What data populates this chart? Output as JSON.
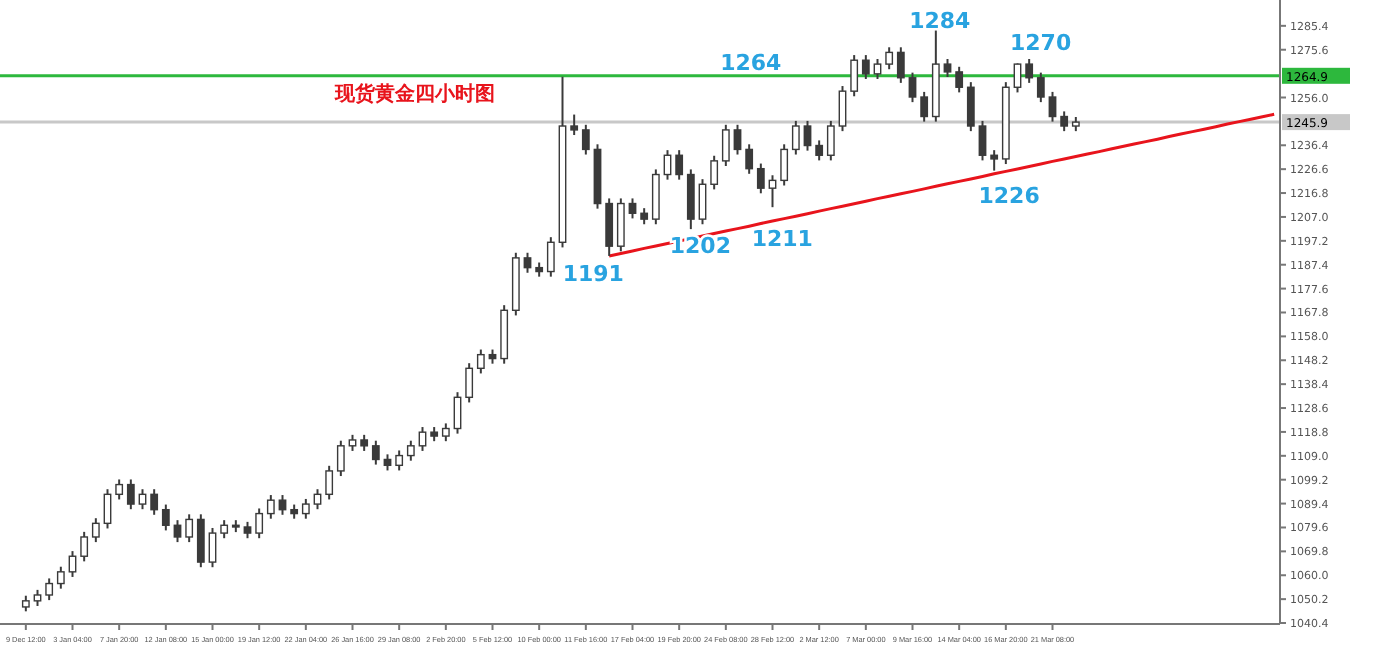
{
  "chart_data": {
    "type": "candlestick",
    "title": "现货黄金四小时图",
    "color": "#3a3a3a",
    "categories": [
      "9 Dec 12:00",
      null,
      null,
      null,
      "3 Jan 04:00",
      null,
      null,
      null,
      "7 Jan 20:00",
      null,
      null,
      null,
      "12 Jan 08:00",
      null,
      null,
      null,
      "15 Jan 00:00",
      null,
      null,
      null,
      "19 Jan 12:00",
      null,
      null,
      null,
      "22 Jan 04:00",
      null,
      null,
      null,
      "26 Jan 16:00",
      null,
      null,
      null,
      "29 Jan 08:00",
      null,
      null,
      null,
      "2 Feb 20:00",
      null,
      null,
      null,
      "5 Feb 12:00",
      null,
      null,
      null,
      "10 Feb 00:00",
      null,
      null,
      null,
      "11 Feb 16:00",
      null,
      null,
      null,
      "17 Feb 04:00",
      null,
      null,
      null,
      "19 Feb 20:00",
      null,
      null,
      null,
      "24 Feb 08:00",
      null,
      null,
      null,
      "28 Feb 12:00",
      null,
      null,
      null,
      "2 Mar 12:00",
      null,
      null,
      null,
      "7 Mar 00:00",
      null,
      null,
      null,
      "9 Mar 16:00",
      null,
      null,
      null,
      "14 Mar 04:00",
      null,
      null,
      null,
      "16 Mar 20:00",
      null,
      null,
      null,
      "21 Mar 08:00",
      null,
      null,
      null,
      null,
      null,
      null,
      null,
      null,
      null,
      null,
      null,
      null,
      null,
      null,
      null,
      null,
      null,
      null,
      null
    ],
    "ohlc": [
      [
        1047.0,
        1051.6,
        1045.2,
        1049.5
      ],
      [
        1049.5,
        1054.0,
        1047.4,
        1051.9
      ],
      [
        1051.9,
        1058.7,
        1049.8,
        1056.6
      ],
      [
        1056.6,
        1063.5,
        1054.5,
        1061.4
      ],
      [
        1061.4,
        1069.9,
        1059.3,
        1067.8
      ],
      [
        1067.8,
        1077.8,
        1065.7,
        1075.7
      ],
      [
        1075.7,
        1083.4,
        1073.6,
        1081.3
      ],
      [
        1081.3,
        1095.3,
        1079.2,
        1093.2
      ],
      [
        1093.2,
        1099.3,
        1091.1,
        1097.2
      ],
      [
        1097.2,
        1099.3,
        1087.1,
        1089.2
      ],
      [
        1089.2,
        1095.3,
        1087.1,
        1093.2
      ],
      [
        1093.2,
        1095.3,
        1084.8,
        1086.9
      ],
      [
        1086.9,
        1089.0,
        1078.4,
        1080.5
      ],
      [
        1080.5,
        1082.6,
        1073.6,
        1075.7
      ],
      [
        1075.7,
        1085.0,
        1073.6,
        1082.9
      ],
      [
        1082.9,
        1085.0,
        1063.3,
        1065.4
      ],
      [
        1065.4,
        1079.4,
        1063.3,
        1077.3
      ],
      [
        1077.3,
        1082.6,
        1075.2,
        1080.5
      ],
      [
        1080.5,
        1082.6,
        1077.7,
        1079.8
      ],
      [
        1079.8,
        1081.9,
        1075.2,
        1077.3
      ],
      [
        1077.3,
        1087.4,
        1075.2,
        1085.3
      ],
      [
        1085.3,
        1092.9,
        1083.2,
        1090.8
      ],
      [
        1090.8,
        1092.9,
        1084.8,
        1086.9
      ],
      [
        1086.9,
        1089.0,
        1083.2,
        1085.3
      ],
      [
        1085.3,
        1091.3,
        1083.2,
        1089.2
      ],
      [
        1089.2,
        1095.3,
        1087.1,
        1093.2
      ],
      [
        1093.2,
        1104.9,
        1091.1,
        1102.8
      ],
      [
        1102.8,
        1115.2,
        1100.7,
        1113.1
      ],
      [
        1113.1,
        1117.6,
        1111.0,
        1115.5
      ],
      [
        1115.5,
        1117.6,
        1111.0,
        1113.1
      ],
      [
        1113.1,
        1115.2,
        1105.4,
        1107.5
      ],
      [
        1107.5,
        1109.6,
        1103.0,
        1105.1
      ],
      [
        1105.1,
        1111.2,
        1103.0,
        1109.1
      ],
      [
        1109.1,
        1115.2,
        1107.0,
        1113.1
      ],
      [
        1113.1,
        1120.8,
        1111.0,
        1118.7
      ],
      [
        1118.7,
        1120.8,
        1115.0,
        1117.1
      ],
      [
        1117.1,
        1122.3,
        1115.0,
        1120.2
      ],
      [
        1120.2,
        1135.1,
        1118.1,
        1133.0
      ],
      [
        1133.0,
        1147.0,
        1130.9,
        1144.9
      ],
      [
        1144.9,
        1152.6,
        1142.8,
        1150.5
      ],
      [
        1150.5,
        1152.6,
        1146.8,
        1148.9
      ],
      [
        1148.9,
        1170.8,
        1146.8,
        1168.7
      ],
      [
        1168.7,
        1192.3,
        1166.6,
        1190.2
      ],
      [
        1190.2,
        1192.3,
        1184.1,
        1186.2
      ],
      [
        1186.2,
        1188.3,
        1182.5,
        1184.6
      ],
      [
        1184.6,
        1198.7,
        1182.5,
        1196.6
      ],
      [
        1196.6,
        1264.5,
        1194.5,
        1244.3
      ],
      [
        1244.3,
        1249.0,
        1240.6,
        1242.7
      ],
      [
        1242.7,
        1244.8,
        1232.6,
        1234.7
      ],
      [
        1234.7,
        1236.8,
        1210.4,
        1212.5
      ],
      [
        1212.5,
        1214.6,
        1191.0,
        1195.0
      ],
      [
        1195.0,
        1214.6,
        1192.9,
        1212.5
      ],
      [
        1212.5,
        1214.6,
        1206.4,
        1208.5
      ],
      [
        1208.5,
        1210.6,
        1204.0,
        1206.1
      ],
      [
        1206.1,
        1226.5,
        1204.0,
        1224.4
      ],
      [
        1224.4,
        1234.4,
        1222.3,
        1232.3
      ],
      [
        1232.3,
        1234.4,
        1222.3,
        1224.4
      ],
      [
        1224.4,
        1226.5,
        1202.0,
        1206.1
      ],
      [
        1206.1,
        1222.5,
        1204.0,
        1220.4
      ],
      [
        1220.4,
        1232.1,
        1218.3,
        1230.0
      ],
      [
        1230.0,
        1244.8,
        1227.9,
        1242.7
      ],
      [
        1242.7,
        1244.8,
        1232.6,
        1234.7
      ],
      [
        1234.7,
        1236.8,
        1224.7,
        1226.8
      ],
      [
        1226.8,
        1228.9,
        1216.7,
        1218.8
      ],
      [
        1218.8,
        1224.1,
        1211.0,
        1222.0
      ],
      [
        1222.0,
        1236.8,
        1219.9,
        1234.7
      ],
      [
        1234.7,
        1246.4,
        1232.6,
        1244.3
      ],
      [
        1244.3,
        1246.4,
        1234.2,
        1236.3
      ],
      [
        1236.3,
        1238.4,
        1230.2,
        1232.3
      ],
      [
        1232.3,
        1246.4,
        1230.2,
        1244.3
      ],
      [
        1244.3,
        1260.7,
        1242.2,
        1258.6
      ],
      [
        1258.6,
        1273.4,
        1256.5,
        1271.3
      ],
      [
        1271.3,
        1273.4,
        1263.6,
        1265.7
      ],
      [
        1265.7,
        1271.8,
        1263.6,
        1269.7
      ],
      [
        1269.7,
        1276.6,
        1267.6,
        1274.5
      ],
      [
        1274.5,
        1276.6,
        1262.0,
        1264.1
      ],
      [
        1264.1,
        1266.2,
        1254.1,
        1256.2
      ],
      [
        1256.2,
        1258.3,
        1246.1,
        1248.2
      ],
      [
        1248.2,
        1284.0,
        1246.1,
        1269.7
      ],
      [
        1269.7,
        1271.8,
        1264.4,
        1266.5
      ],
      [
        1266.5,
        1268.6,
        1258.1,
        1260.2
      ],
      [
        1260.2,
        1262.3,
        1242.2,
        1244.3
      ],
      [
        1244.3,
        1246.4,
        1230.2,
        1232.3
      ],
      [
        1232.3,
        1234.4,
        1226.0,
        1230.8
      ],
      [
        1230.8,
        1262.3,
        1228.7,
        1260.2
      ],
      [
        1260.2,
        1270.0,
        1258.1,
        1269.7
      ],
      [
        1269.7,
        1271.8,
        1262.0,
        1264.1
      ],
      [
        1264.1,
        1266.2,
        1254.1,
        1256.2
      ],
      [
        1256.2,
        1258.3,
        1246.1,
        1248.2
      ],
      [
        1248.2,
        1250.3,
        1242.2,
        1244.3
      ],
      [
        1244.3,
        1248.0,
        1242.2,
        1245.9
      ],
      null,
      null,
      null,
      null,
      null,
      null,
      null,
      null,
      null,
      null,
      null,
      null,
      null,
      null,
      null,
      null,
      null
    ],
    "series": [
      {
        "type": "line",
        "color": "#e8141c",
        "values": [
          null,
          null,
          null,
          null,
          null,
          null,
          null,
          null,
          null,
          null,
          null,
          null,
          null,
          null,
          null,
          null,
          null,
          null,
          null,
          null,
          null,
          null,
          null,
          null,
          null,
          null,
          null,
          null,
          null,
          null,
          null,
          null,
          null,
          null,
          null,
          null,
          null,
          null,
          null,
          null,
          null,
          null,
          null,
          null,
          null,
          null,
          null,
          null,
          null,
          null,
          1191.0,
          1192.0,
          1193.0,
          1194.1,
          1195.1,
          1196.1,
          1197.1,
          1198.1,
          1199.2,
          1200.2,
          1201.2,
          1202.2,
          1203.2,
          1204.3,
          1205.3,
          1206.3,
          1207.3,
          1208.3,
          1209.4,
          1210.4,
          1211.4,
          1212.4,
          1213.4,
          1214.5,
          1215.5,
          1216.5,
          1217.5,
          1218.5,
          1219.6,
          1220.6,
          1221.6,
          1222.6,
          1223.6,
          1224.7,
          1225.7,
          1226.7,
          1227.7,
          1228.7,
          1229.8,
          1230.8,
          1231.8,
          1232.8,
          1233.8,
          1234.9,
          1235.9,
          1236.9,
          1237.9,
          1238.9,
          1240.0,
          1241.0,
          1242.0,
          1243.0,
          1244.0,
          1245.1,
          1246.1,
          1247.1,
          1248.1,
          1249.1
        ]
      }
    ],
    "ref_lines": [
      {
        "axis": "y",
        "value": 1264.9,
        "label": "1264.9",
        "color": "#2db83d"
      },
      {
        "axis": "y",
        "value": 1245.9,
        "label": "1245.9",
        "color": "#c8c8c8"
      }
    ],
    "annotations": [
      "1191",
      "1202",
      "1211",
      "1226",
      "1264",
      "1284",
      "1270"
    ],
    "ylim": [
      1040,
      1296
    ],
    "yticks": [
      1285.4,
      1275.6,
      {
        "value": 1256,
        "label": "1256.0"
      },
      1236.4,
      1226.6,
      1216.8,
      {
        "value": 1207,
        "label": "1207.0"
      },
      1197.2,
      1187.4,
      1177.6,
      1167.8,
      {
        "value": 1158,
        "label": "1158.0"
      },
      1148.2,
      1138.4,
      1128.6,
      1118.8,
      {
        "value": 1109,
        "label": "1109.0"
      },
      1099.2,
      1089.4,
      1079.6,
      1069.8,
      {
        "value": 1060,
        "label": "1060.0"
      },
      1050.2,
      1040.4
    ],
    "grid": false
  }
}
